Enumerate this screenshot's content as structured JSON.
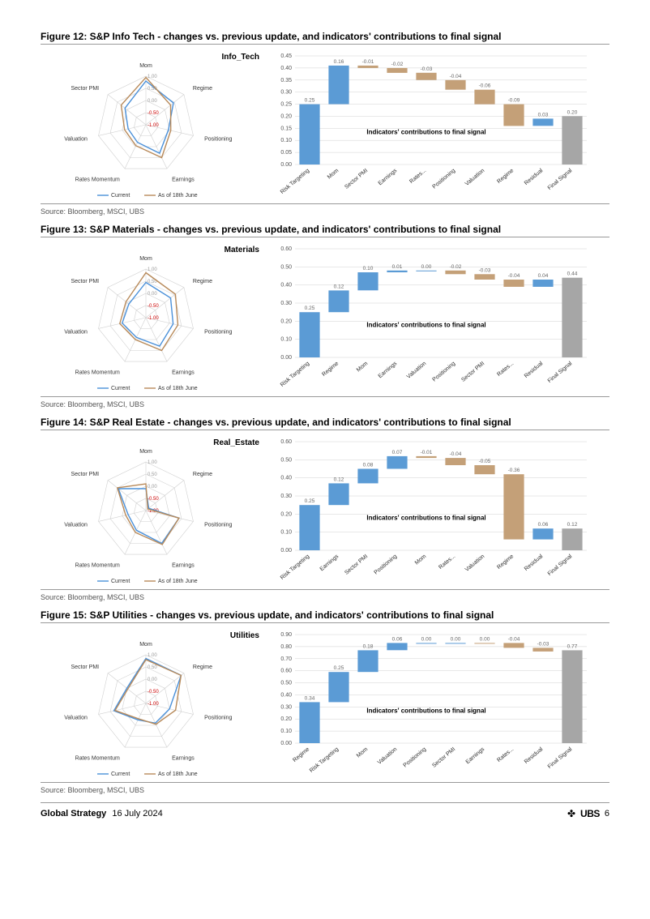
{
  "footer": {
    "left": "Global Strategy",
    "date": "16 July 2024",
    "brand": "UBS",
    "page": "6"
  },
  "figures": [
    {
      "title": "Figure 12: S&P Info Tech - changes vs. previous update, and indicators' contributions to final signal",
      "source": "Source: Bloomberg, MSCI, UBS",
      "radar": {
        "label": "Info_Tech",
        "axes": [
          "Mom",
          "Regime",
          "Positioning",
          "Earnings",
          "Rates Momentum",
          "Valuation",
          "Sector PMI"
        ],
        "rings": [
          1.0,
          0.5,
          0.0,
          -0.5,
          -1.0
        ],
        "ring_colors": [
          "#999",
          "#999",
          "#999",
          "#c00",
          "#c00"
        ],
        "series": [
          {
            "name": "Current",
            "color": "#4a90d9",
            "values": [
              0.8,
              0.45,
              -0.05,
              0.3,
              -0.2,
              -0.25,
              0.1
            ]
          },
          {
            "name": "As of 18th June",
            "color": "#b88a5a",
            "values": [
              0.95,
              0.3,
              0.05,
              0.5,
              -0.05,
              -0.1,
              0.3
            ]
          }
        ]
      },
      "waterfall": {
        "ylim": [
          0.0,
          0.45
        ],
        "ystep": 0.05,
        "annotation": "Indicators' contributions to final signal",
        "bars": [
          {
            "label": "Risk Targeting",
            "value": 0.25,
            "type": "pos",
            "start": 0.0,
            "end": 0.25
          },
          {
            "label": "Mom",
            "value": 0.16,
            "type": "pos",
            "start": 0.25,
            "end": 0.41
          },
          {
            "label": "Sector PMI",
            "value": -0.01,
            "type": "neg",
            "start": 0.41,
            "end": 0.4
          },
          {
            "label": "Earnings",
            "value": -0.02,
            "type": "neg",
            "start": 0.4,
            "end": 0.38
          },
          {
            "label": "Rates...",
            "value": -0.03,
            "type": "neg",
            "start": 0.38,
            "end": 0.35
          },
          {
            "label": "Positioning",
            "value": -0.04,
            "type": "neg",
            "start": 0.35,
            "end": 0.31
          },
          {
            "label": "Valuation",
            "value": -0.06,
            "type": "neg",
            "start": 0.31,
            "end": 0.25
          },
          {
            "label": "Regime",
            "value": -0.09,
            "type": "neg",
            "start": 0.25,
            "end": 0.16
          },
          {
            "label": "Residual",
            "value": 0.03,
            "type": "pos",
            "start": 0.16,
            "end": 0.19
          },
          {
            "label": "Final Signal",
            "value": 0.2,
            "type": "final",
            "start": 0.0,
            "end": 0.2
          }
        ]
      }
    },
    {
      "title": "Figure 13: S&P Materials - changes vs. previous update, and indicators' contributions to final signal",
      "source": "Source: Bloomberg, MSCI, UBS",
      "radar": {
        "label": "Materials",
        "axes": [
          "Mom",
          "Regime",
          "Positioning",
          "Earnings",
          "Rates Momentum",
          "Valuation",
          "Sector PMI"
        ],
        "rings": [
          1.0,
          0.5,
          0.0,
          -0.5,
          -1.0
        ],
        "ring_colors": [
          "#999",
          "#999",
          "#999",
          "#c00",
          "#c00"
        ],
        "series": [
          {
            "name": "Current",
            "color": "#4a90d9",
            "values": [
              0.45,
              0.3,
              0.15,
              0.3,
              -0.1,
              0.0,
              -0.1
            ]
          },
          {
            "name": "As of 18th June",
            "color": "#b88a5a",
            "values": [
              0.85,
              0.55,
              0.35,
              0.5,
              0.0,
              0.1,
              0.05
            ]
          }
        ]
      },
      "waterfall": {
        "ylim": [
          0.0,
          0.6
        ],
        "ystep": 0.1,
        "annotation": "Indicators' contributions to final signal",
        "bars": [
          {
            "label": "Risk Targeting",
            "value": 0.25,
            "type": "pos",
            "start": 0.0,
            "end": 0.25
          },
          {
            "label": "Regime",
            "value": 0.12,
            "type": "pos",
            "start": 0.25,
            "end": 0.37
          },
          {
            "label": "Mom",
            "value": 0.1,
            "type": "pos",
            "start": 0.37,
            "end": 0.47
          },
          {
            "label": "Earnings",
            "value": 0.01,
            "type": "pos",
            "start": 0.47,
            "end": 0.48
          },
          {
            "label": "Valuation",
            "value": 0.0,
            "type": "pos",
            "start": 0.48,
            "end": 0.48
          },
          {
            "label": "Positioning",
            "value": -0.02,
            "type": "neg",
            "start": 0.48,
            "end": 0.46
          },
          {
            "label": "Sector PMI",
            "value": -0.03,
            "type": "neg",
            "start": 0.46,
            "end": 0.43
          },
          {
            "label": "Rates...",
            "value": -0.04,
            "type": "neg",
            "start": 0.43,
            "end": 0.39
          },
          {
            "label": "Residual",
            "value": 0.04,
            "type": "pos",
            "start": 0.39,
            "end": 0.43
          },
          {
            "label": "Final Signal",
            "value": 0.44,
            "type": "final",
            "start": 0.0,
            "end": 0.44
          }
        ]
      }
    },
    {
      "title": "Figure 14: S&P Real Estate - changes vs. previous update, and indicators' contributions to final signal",
      "source": "Source: Bloomberg, MSCI, UBS",
      "radar": {
        "label": "Real_Estate",
        "axes": [
          "Mom",
          "Regime",
          "Positioning",
          "Earnings",
          "Rates Momentum",
          "Valuation",
          "Sector PMI"
        ],
        "rings": [
          1.0,
          0.5,
          0.0,
          -0.5,
          -1.0
        ],
        "ring_colors": [
          "#999",
          "#999",
          "#999",
          "#c00",
          "#c00"
        ],
        "series": [
          {
            "name": "Current",
            "color": "#4a90d9",
            "values": [
              -0.1,
              -0.85,
              0.4,
              0.5,
              -0.1,
              -0.25,
              0.45
            ]
          },
          {
            "name": "As of 18th June",
            "color": "#b88a5a",
            "values": [
              0.1,
              -0.9,
              0.4,
              0.55,
              0.0,
              -0.15,
              0.5
            ]
          }
        ]
      },
      "waterfall": {
        "ylim": [
          0.0,
          0.6
        ],
        "ystep": 0.1,
        "annotation": "Indicators' contributions to final signal",
        "bars": [
          {
            "label": "Risk Targeting",
            "value": 0.25,
            "type": "pos",
            "start": 0.0,
            "end": 0.25
          },
          {
            "label": "Earnings",
            "value": 0.12,
            "type": "pos",
            "start": 0.25,
            "end": 0.37
          },
          {
            "label": "Sector PMI",
            "value": 0.08,
            "type": "pos",
            "start": 0.37,
            "end": 0.45
          },
          {
            "label": "Positioning",
            "value": 0.07,
            "type": "pos",
            "start": 0.45,
            "end": 0.52
          },
          {
            "label": "Mom",
            "value": -0.01,
            "type": "neg",
            "start": 0.52,
            "end": 0.51
          },
          {
            "label": "Rates...",
            "value": -0.04,
            "type": "neg",
            "start": 0.51,
            "end": 0.47
          },
          {
            "label": "Valuation",
            "value": -0.05,
            "type": "neg",
            "start": 0.47,
            "end": 0.42
          },
          {
            "label": "Regime",
            "value": -0.36,
            "type": "neg",
            "start": 0.42,
            "end": 0.06
          },
          {
            "label": "Residual",
            "value": 0.06,
            "type": "pos",
            "start": 0.06,
            "end": 0.12
          },
          {
            "label": "Final Signal",
            "value": 0.12,
            "type": "final",
            "start": 0.0,
            "end": 0.12
          }
        ]
      }
    },
    {
      "title": "Figure 15: S&P Utilities - changes vs. previous update, and indicators' contributions to final signal",
      "source": "Source: Bloomberg, MSCI, UBS",
      "radar": {
        "label": "Utilities",
        "axes": [
          "Mom",
          "Regime",
          "Positioning",
          "Earnings",
          "Rates Momentum",
          "Valuation",
          "Sector PMI"
        ],
        "rings": [
          1.0,
          0.5,
          0.0,
          -0.5,
          -1.0
        ],
        "ring_colors": [
          "#999",
          "#999",
          "#999",
          "#c00",
          "#c00"
        ],
        "series": [
          {
            "name": "Current",
            "color": "#4a90d9",
            "values": [
              0.85,
              0.85,
              0.0,
              -0.1,
              -0.25,
              0.35,
              0.0
            ]
          },
          {
            "name": "As of 18th June",
            "color": "#b88a5a",
            "values": [
              0.8,
              0.85,
              0.25,
              -0.05,
              -0.3,
              0.3,
              -0.05
            ]
          }
        ]
      },
      "waterfall": {
        "ylim": [
          0.0,
          0.9
        ],
        "ystep": 0.1,
        "annotation": "Indicators' contributions to final signal",
        "bars": [
          {
            "label": "Regime",
            "value": 0.34,
            "type": "pos",
            "start": 0.0,
            "end": 0.34
          },
          {
            "label": "Risk Targeting",
            "value": 0.25,
            "type": "pos",
            "start": 0.34,
            "end": 0.59
          },
          {
            "label": "Mom",
            "value": 0.18,
            "type": "pos",
            "start": 0.59,
            "end": 0.77
          },
          {
            "label": "Valuation",
            "value": 0.06,
            "type": "pos",
            "start": 0.77,
            "end": 0.83
          },
          {
            "label": "Positioning",
            "value": 0.0,
            "type": "pos",
            "start": 0.83,
            "end": 0.83
          },
          {
            "label": "Sector PMI",
            "value": 0.0,
            "type": "pos",
            "start": 0.83,
            "end": 0.83
          },
          {
            "label": "Earnings",
            "value": -0.0,
            "type": "neg",
            "start": 0.83,
            "end": 0.83
          },
          {
            "label": "Rates...",
            "value": -0.04,
            "type": "neg",
            "start": 0.83,
            "end": 0.79
          },
          {
            "label": "Residual",
            "value": -0.03,
            "type": "neg",
            "start": 0.79,
            "end": 0.76
          },
          {
            "label": "Final Signal",
            "value": 0.77,
            "type": "final",
            "start": 0.0,
            "end": 0.77
          }
        ]
      }
    }
  ],
  "colors": {
    "pos_bar": "#5b9bd5",
    "neg_bar": "#c4a078",
    "final_bar": "#a6a6a6",
    "grid": "#d0d0d0",
    "axis_text": "#555",
    "value_text": "#666"
  }
}
